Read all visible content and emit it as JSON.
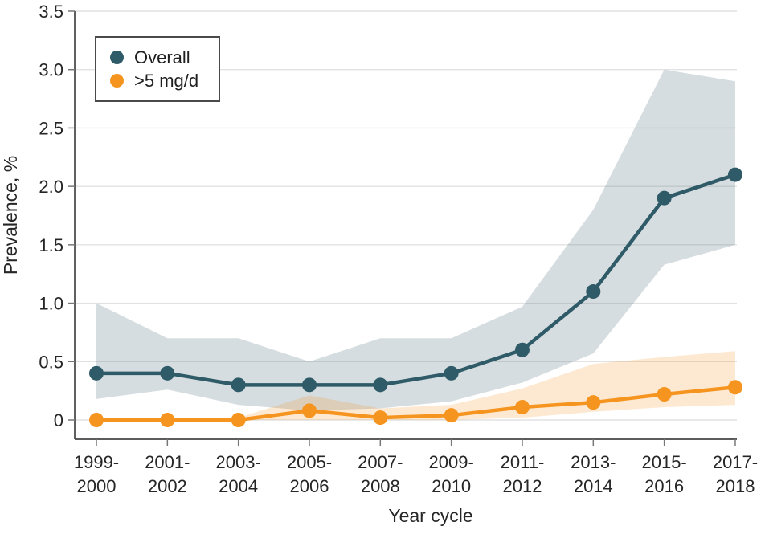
{
  "chart_data": {
    "type": "line",
    "title": "",
    "xlabel": "Year cycle",
    "ylabel": "Prevalence, %",
    "ylim": [
      0,
      3.5
    ],
    "grid": true,
    "legend_position": "top-left",
    "categories": [
      [
        "1999-",
        "2000"
      ],
      [
        "2001-",
        "2002"
      ],
      [
        "2003-",
        "2004"
      ],
      [
        "2005-",
        "2006"
      ],
      [
        "2007-",
        "2008"
      ],
      [
        "2009-",
        "2010"
      ],
      [
        "2011-",
        "2012"
      ],
      [
        "2013-",
        "2014"
      ],
      [
        "2015-",
        "2016"
      ],
      [
        "2017-",
        "2018"
      ]
    ],
    "yticks": [
      {
        "label": "0",
        "value": 0
      },
      {
        "label": "0.5",
        "value": 0.5
      },
      {
        "label": "1.0",
        "value": 1.0
      },
      {
        "label": "1.5",
        "value": 1.5
      },
      {
        "label": "2.0",
        "value": 2.0
      },
      {
        "label": "2.5",
        "value": 2.5
      },
      {
        "label": "3.0",
        "value": 3.0
      },
      {
        "label": "3.5",
        "value": 3.5
      }
    ],
    "series": [
      {
        "name": "Overall",
        "slug": "overall",
        "color": "#2E5B67",
        "band_color": "rgba(93,119,133,0.25)",
        "values": [
          0.4,
          0.4,
          0.3,
          0.3,
          0.3,
          0.4,
          0.6,
          1.1,
          1.9,
          2.1
        ],
        "ci_lower": [
          0.18,
          0.26,
          0.13,
          0.08,
          0.1,
          0.16,
          0.32,
          0.57,
          1.33,
          1.5
        ],
        "ci_upper": [
          1.0,
          0.7,
          0.7,
          0.5,
          0.7,
          0.7,
          0.97,
          1.8,
          3.0,
          2.9
        ]
      },
      {
        "name": ">5 mg/d",
        "slug": "gt5mgd",
        "color": "#F5941F",
        "band_color": "rgba(244,146,31,0.20)",
        "values": [
          0.0,
          0.0,
          0.0,
          0.08,
          0.02,
          0.04,
          0.11,
          0.15,
          0.22,
          0.28
        ],
        "ci_lower": [
          0.0,
          0.0,
          0.0,
          0.0,
          0.0,
          0.0,
          0.02,
          0.07,
          0.11,
          0.13
        ],
        "ci_upper": [
          0.01,
          0.01,
          0.02,
          0.21,
          0.1,
          0.13,
          0.27,
          0.48,
          0.54,
          0.59
        ]
      }
    ],
    "style": {
      "grid_color": "#e2e2e2",
      "axis_color": "#444444",
      "tick_color": "#777777",
      "text_color": "#262626"
    }
  }
}
